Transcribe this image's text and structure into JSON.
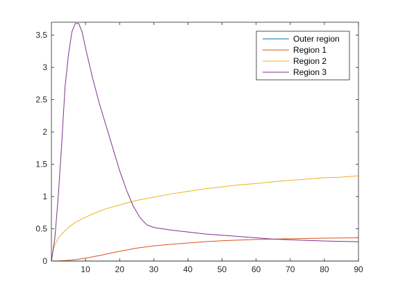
{
  "chart_data": {
    "type": "line",
    "title": "",
    "xlabel": "",
    "ylabel": "",
    "xlim": [
      0,
      90
    ],
    "ylim": [
      0,
      3.7
    ],
    "grid": false,
    "legend_position": "top-right",
    "x_ticks": [
      10,
      20,
      30,
      40,
      50,
      60,
      70,
      80,
      90
    ],
    "x_tick_labels": [
      "10",
      "20",
      "30",
      "40",
      "50",
      "60",
      "70",
      "80",
      "90"
    ],
    "y_ticks": [
      0,
      0.5,
      1,
      1.5,
      2,
      2.5,
      3,
      3.5
    ],
    "y_tick_labels": [
      "0",
      "0.5",
      "1",
      "1.5",
      "2",
      "2.5",
      "3",
      "3.5"
    ],
    "series": [
      {
        "name": "Outer region",
        "color": "#0072BD",
        "x": [
          0,
          10,
          20,
          30,
          40,
          50,
          60,
          70,
          80,
          90
        ],
        "y": [
          0,
          0,
          0,
          0,
          0,
          0,
          0,
          0,
          0,
          0
        ]
      },
      {
        "name": "Region 1",
        "color": "#D95319",
        "x": [
          0,
          2,
          4,
          6,
          8,
          10,
          12,
          15,
          18,
          20,
          25,
          30,
          35,
          40,
          45,
          50,
          55,
          60,
          70,
          80,
          90
        ],
        "y": [
          0,
          0.002,
          0.008,
          0.016,
          0.03,
          0.045,
          0.065,
          0.095,
          0.13,
          0.15,
          0.2,
          0.235,
          0.26,
          0.28,
          0.3,
          0.315,
          0.325,
          0.335,
          0.345,
          0.355,
          0.36
        ]
      },
      {
        "name": "Region 2",
        "color": "#EDB120",
        "x": [
          0,
          0.5,
          1,
          2,
          3,
          5,
          7,
          10,
          13,
          16,
          20,
          25,
          30,
          35,
          40,
          45,
          50,
          55,
          60,
          65,
          70,
          75,
          80,
          85,
          90
        ],
        "y": [
          0,
          0.17,
          0.25,
          0.35,
          0.42,
          0.52,
          0.6,
          0.68,
          0.75,
          0.81,
          0.87,
          0.94,
          0.99,
          1.04,
          1.08,
          1.12,
          1.15,
          1.18,
          1.2,
          1.23,
          1.25,
          1.27,
          1.29,
          1.3,
          1.32
        ]
      },
      {
        "name": "Region 3",
        "color": "#7E2F8E",
        "x": [
          0,
          1,
          2,
          3,
          4,
          5,
          6,
          7,
          8,
          9,
          10,
          12,
          14,
          16,
          18,
          20,
          22,
          24,
          26,
          28,
          30,
          35,
          40,
          45,
          50,
          55,
          60,
          65,
          70,
          75,
          80,
          85,
          90
        ],
        "y": [
          0,
          0.35,
          1.0,
          1.8,
          2.7,
          3.2,
          3.55,
          3.68,
          3.68,
          3.55,
          3.3,
          2.85,
          2.45,
          2.1,
          1.75,
          1.4,
          1.1,
          0.85,
          0.67,
          0.56,
          0.52,
          0.48,
          0.45,
          0.42,
          0.4,
          0.38,
          0.36,
          0.34,
          0.33,
          0.32,
          0.31,
          0.305,
          0.3
        ]
      }
    ]
  }
}
